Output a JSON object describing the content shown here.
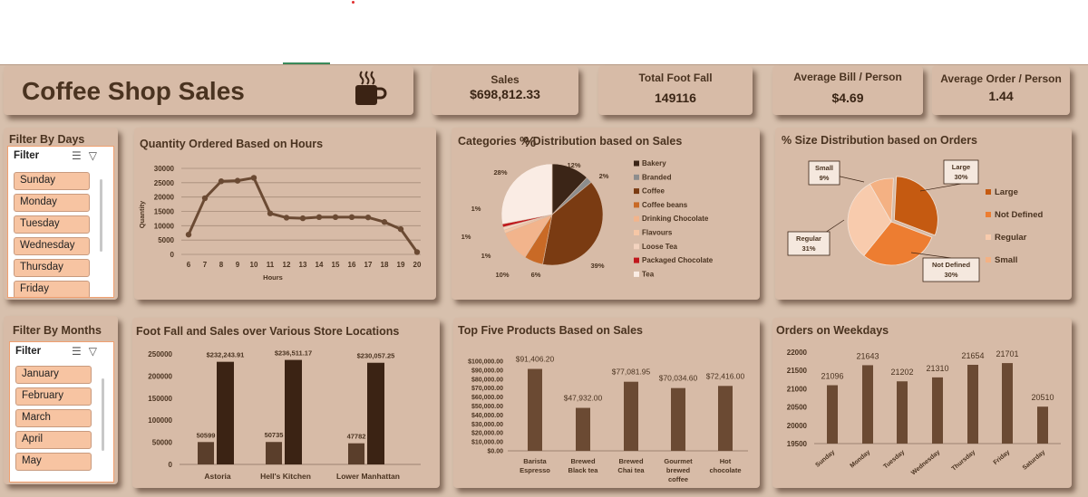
{
  "title": "Coffee Shop Sales",
  "kpis": [
    {
      "label": "Sales",
      "value": "$698,812.33"
    },
    {
      "label": "Total Foot Fall",
      "value": "149116"
    },
    {
      "label": "Average Bill / Person",
      "value": "$4.69"
    },
    {
      "label": "Average Order / Person",
      "value": "1.44"
    }
  ],
  "filter_days": {
    "title": "Filter By Days",
    "header": "Filter",
    "items": [
      "Sunday",
      "Monday",
      "Tuesday",
      "Wednesday",
      "Thursday",
      "Friday"
    ]
  },
  "filter_months": {
    "title": "Filter By Months",
    "header": "Filter",
    "items": [
      "January",
      "February",
      "March",
      "April",
      "May"
    ]
  },
  "colors": {
    "dashboard_bg": "#d7c0ad",
    "card_bg": "#d7bba7",
    "dark_brown": "#4a2d1a",
    "mid_brown": "#6b4a33",
    "slicer_item": "#f7c4a2"
  },
  "chart_data": [
    {
      "type": "line",
      "title": "Quantity Ordered Based on Hours",
      "xlabel": "Hours",
      "ylabel": "Quantity",
      "x": [
        6,
        7,
        8,
        9,
        10,
        11,
        12,
        13,
        14,
        15,
        16,
        17,
        18,
        19,
        20
      ],
      "values": [
        6900,
        19600,
        25500,
        25700,
        26700,
        14300,
        12800,
        12600,
        13000,
        13000,
        13000,
        12900,
        11300,
        8800,
        800
      ],
      "ylim": [
        0,
        30000
      ],
      "yticks": [
        "0",
        "5000",
        "10000",
        "15000",
        "20000",
        "25000",
        "30000"
      ],
      "grid": true
    },
    {
      "type": "pie",
      "title": "Categories % Distribution based on Sales",
      "categories": [
        "Bakery",
        "Branded",
        "Coffee",
        "Coffee beans",
        "Drinking Chocolate",
        "Flavours",
        "Loose Tea",
        "Packaged Chocolate",
        "Tea"
      ],
      "values": [
        12,
        2,
        39,
        6,
        10,
        1,
        1,
        1,
        28
      ],
      "labels": [
        "12%",
        "2%",
        "39%",
        "6%",
        "10%",
        "1%",
        "1%",
        "1%",
        "28%"
      ],
      "colors": [
        "#3b2517",
        "#8d8d8d",
        "#7a3b12",
        "#c96a26",
        "#f2b48c",
        "#f6c7a6",
        "#f3d3bf",
        "#c0171c",
        "#faece4"
      ],
      "legend": "right"
    },
    {
      "type": "pie",
      "title": "% Size Distribution based on Orders",
      "categories": [
        "Large",
        "Not Defined",
        "Regular",
        "Small"
      ],
      "values": [
        30,
        30,
        31,
        9
      ],
      "callouts": [
        {
          "name": "Large",
          "pct": "30%"
        },
        {
          "name": "Not Defined",
          "pct": "30%"
        },
        {
          "name": "Regular",
          "pct": "31%"
        },
        {
          "name": "Small",
          "pct": "9%"
        }
      ],
      "colors": [
        "#c55a11",
        "#ed7d31",
        "#f8cbad",
        "#f4b183"
      ],
      "legend": "right"
    },
    {
      "type": "bar",
      "title": "Foot Fall and Sales over Various Store Locations",
      "categories": [
        "Astoria",
        "Hell's Kitchen",
        "Lower Manhattan"
      ],
      "series": [
        {
          "values": [
            50599,
            50735,
            47782
          ],
          "labels": [
            "50599",
            "50735",
            "47782"
          ],
          "color": "#5a3e2b"
        },
        {
          "values": [
            232243.91,
            236511.17,
            230057.25
          ],
          "labels": [
            "$232,243.91",
            "$236,511.17",
            "$230,057.25"
          ],
          "color": "#3b2314"
        }
      ],
      "ylim": [
        0,
        250000
      ],
      "yticks": [
        "0",
        "50000",
        "100000",
        "150000",
        "200000",
        "250000"
      ]
    },
    {
      "type": "bar",
      "title": "Top Five Products Based on Sales",
      "categories": [
        "Barista Espresso",
        "Brewed Black tea",
        "Brewed Chai tea",
        "Gourmet brewed coffee",
        "Hot chocolate"
      ],
      "category_lines": [
        [
          "Barista",
          "Espresso"
        ],
        [
          "Brewed",
          "Black tea"
        ],
        [
          "Brewed",
          "Chai tea"
        ],
        [
          "Gourmet",
          "brewed",
          "coffee"
        ],
        [
          "Hot",
          "chocolate"
        ]
      ],
      "values": [
        91406.2,
        47932.0,
        77081.95,
        70034.6,
        72416.0
      ],
      "labels": [
        "$91,406.20",
        "$47,932.00",
        "$77,081.95",
        "$70,034.60",
        "$72,416.00"
      ],
      "ylim": [
        0,
        100000
      ],
      "yticks": [
        "$0.00",
        "$10,000.00",
        "$20,000.00",
        "$30,000.00",
        "$40,000.00",
        "$50,000.00",
        "$60,000.00",
        "$70,000.00",
        "$80,000.00",
        "$90,000.00",
        "$100,000.00"
      ]
    },
    {
      "type": "bar",
      "title": "Orders on Weekdays",
      "categories": [
        "Sunday",
        "Monday",
        "Tuesday",
        "Wednesday",
        "Thursday",
        "Friday",
        "Saturday"
      ],
      "values": [
        21096,
        21643,
        21202,
        21310,
        21654,
        21701,
        20510
      ],
      "labels": [
        "21096",
        "21643",
        "21202",
        "21310",
        "21654",
        "21701",
        "20510"
      ],
      "ylim": [
        19500,
        22000
      ],
      "yticks": [
        "19500",
        "20000",
        "20500",
        "21000",
        "21500",
        "22000"
      ]
    }
  ]
}
